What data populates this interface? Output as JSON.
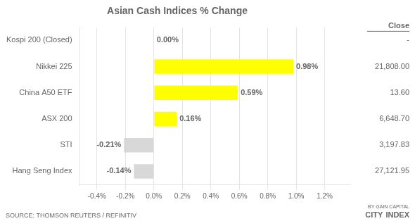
{
  "chart_data": {
    "type": "bar",
    "orientation": "horizontal",
    "title": "Asian Cash Indices % Change",
    "categories": [
      "Hang Seng Index",
      "STI",
      "ASX 200",
      "China A50 ETF",
      "Nikkei 225",
      "Kospi 200 (Closed)"
    ],
    "values": [
      -0.14,
      -0.21,
      0.16,
      0.59,
      0.98,
      0.0
    ],
    "value_labels": [
      "-0.14%",
      "-0.21%",
      "0.16%",
      "0.59%",
      "0.98%",
      "0.00%"
    ],
    "data_labels": true,
    "colors": [
      "#d8d8d8",
      "#d8d8d8",
      "#ffff00",
      "#ffff00",
      "#ffff00",
      "#d8d8d8"
    ],
    "close_values": [
      "27,121.95",
      "3,197.83",
      "6,648.70",
      "13.60",
      "21,808.00",
      "-"
    ],
    "xlim": [
      -0.52,
      1.38
    ],
    "xticks": [
      {
        "value": -0.4,
        "label": "-0.4%"
      },
      {
        "value": -0.2,
        "label": "-0.2%"
      },
      {
        "value": 0.0,
        "label": "0.0%"
      },
      {
        "value": 0.2,
        "label": "0.2%"
      },
      {
        "value": 0.4,
        "label": "0.4%"
      },
      {
        "value": 0.6,
        "label": "0.6%"
      },
      {
        "value": 0.8,
        "label": "0.8%"
      },
      {
        "value": 1.0,
        "label": "1.0%"
      },
      {
        "value": 1.2,
        "label": "1.2%"
      }
    ],
    "grid": true,
    "annotations": [
      "Close",
      "SOURCE: THOMSON REUTERS / REFINITIV",
      "CITY",
      "INDEX",
      "BY GAIN CAPITAL"
    ]
  }
}
